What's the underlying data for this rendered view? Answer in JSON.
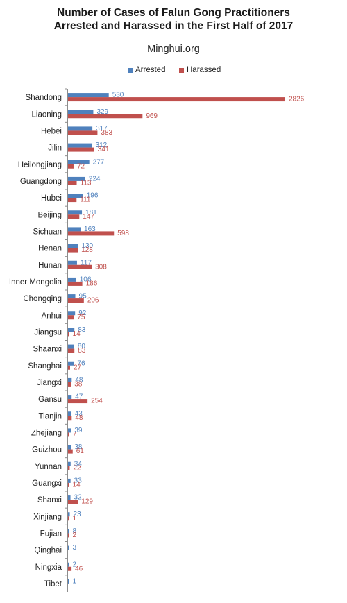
{
  "chart_data": {
    "type": "bar",
    "orientation": "horizontal",
    "title": "Number of Cases of Falun Gong Practitioners Arrested and Harassed in the First Half of 2017",
    "title_lines": [
      "Number of Cases of Falun Gong Practitioners",
      "Arrested and Harassed in the First Half of 2017"
    ],
    "subtitle": "Minghui.org",
    "legend_position": "top-center",
    "grid": false,
    "categories": [
      "Shandong",
      "Liaoning",
      "Hebei",
      "Jilin",
      "Heilongjiang",
      "Guangdong",
      "Hubei",
      "Beijing",
      "Sichuan",
      "Henan",
      "Hunan",
      "Inner Mongolia",
      "Chongqing",
      "Anhui",
      "Jiangsu",
      "Shaanxi",
      "Shanghai",
      "Jiangxi",
      "Gansu",
      "Tianjin",
      "Zhejiang",
      "Guizhou",
      "Yunnan",
      "Guangxi",
      "Shanxi",
      "Xinjiang",
      "Fujian",
      "Qinghai",
      "Ningxia",
      "Tibet"
    ],
    "series": [
      {
        "name": "Arrested",
        "color": "#4f81bd",
        "values": [
          530,
          329,
          317,
          312,
          277,
          224,
          196,
          181,
          163,
          130,
          117,
          106,
          95,
          92,
          83,
          80,
          76,
          48,
          47,
          43,
          39,
          38,
          34,
          33,
          32,
          23,
          8,
          3,
          2,
          1
        ]
      },
      {
        "name": "Harassed",
        "color": "#c0504d",
        "values": [
          2826,
          969,
          383,
          341,
          72,
          113,
          111,
          147,
          598,
          128,
          308,
          186,
          206,
          75,
          14,
          83,
          27,
          38,
          254,
          48,
          7,
          61,
          22,
          14,
          129,
          1,
          2,
          null,
          46,
          null
        ]
      }
    ],
    "xlim": [
      0,
      2826
    ]
  }
}
